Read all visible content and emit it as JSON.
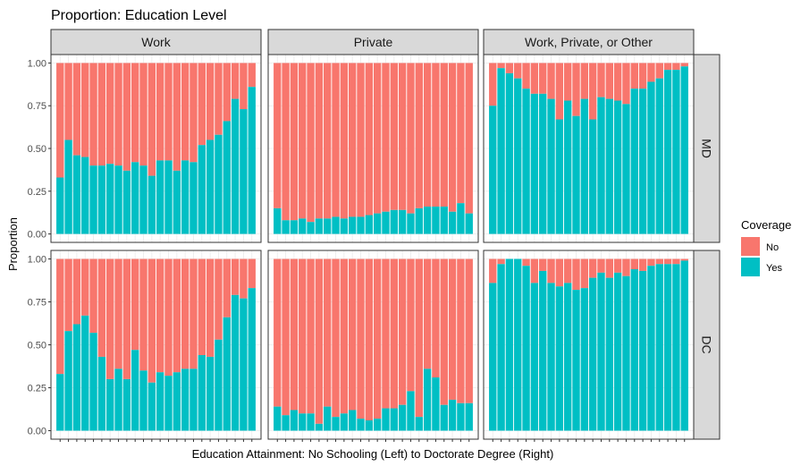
{
  "chart_data": {
    "type": "bar",
    "stacked": true,
    "title": "Proportion: Education Level",
    "xlabel": "Education Attainment: No Schooling (Left) to Doctorate Degree (Right)",
    "ylabel": "Proportion",
    "ylim": [
      0,
      1
    ],
    "yticks": [
      "0.00",
      "0.25",
      "0.50",
      "0.75",
      "1.00"
    ],
    "n_categories": 24,
    "facet_columns": [
      "Work",
      "Private",
      "Work, Private, or Other"
    ],
    "facet_rows": [
      "MD",
      "DC"
    ],
    "legend": {
      "title": "Coverage",
      "position": "right",
      "entries": [
        {
          "label": "No",
          "color": "#F8766D"
        },
        {
          "label": "Yes",
          "color": "#00BFC4"
        }
      ]
    },
    "grid": true,
    "panels": [
      {
        "column": "Work",
        "row": "MD",
        "yes": [
          0.33,
          0.55,
          0.46,
          0.45,
          0.4,
          0.4,
          0.41,
          0.4,
          0.37,
          0.42,
          0.4,
          0.34,
          0.43,
          0.43,
          0.37,
          0.43,
          0.42,
          0.52,
          0.55,
          0.58,
          0.66,
          0.79,
          0.73,
          0.86
        ]
      },
      {
        "column": "Private",
        "row": "MD",
        "yes": [
          0.15,
          0.08,
          0.08,
          0.09,
          0.07,
          0.09,
          0.09,
          0.1,
          0.09,
          0.1,
          0.1,
          0.11,
          0.12,
          0.13,
          0.14,
          0.14,
          0.12,
          0.15,
          0.16,
          0.16,
          0.16,
          0.13,
          0.18,
          0.12
        ]
      },
      {
        "column": "Work, Private, or Other",
        "row": "MD",
        "yes": [
          0.75,
          0.97,
          0.94,
          0.91,
          0.85,
          0.82,
          0.82,
          0.79,
          0.67,
          0.78,
          0.69,
          0.79,
          0.67,
          0.8,
          0.79,
          0.78,
          0.76,
          0.85,
          0.85,
          0.89,
          0.91,
          0.96,
          0.96,
          0.98
        ]
      },
      {
        "column": "Work",
        "row": "DC",
        "yes": [
          0.33,
          0.58,
          0.62,
          0.67,
          0.57,
          0.43,
          0.3,
          0.36,
          0.3,
          0.47,
          0.35,
          0.28,
          0.34,
          0.32,
          0.34,
          0.36,
          0.36,
          0.44,
          0.43,
          0.53,
          0.66,
          0.79,
          0.77,
          0.83
        ]
      },
      {
        "column": "Private",
        "row": "DC",
        "yes": [
          0.14,
          0.09,
          0.12,
          0.1,
          0.1,
          0.04,
          0.14,
          0.08,
          0.1,
          0.12,
          0.07,
          0.06,
          0.07,
          0.13,
          0.13,
          0.15,
          0.23,
          0.08,
          0.36,
          0.31,
          0.15,
          0.18,
          0.16,
          0.16
        ]
      },
      {
        "column": "Work, Private, or Other",
        "row": "DC",
        "yes": [
          0.86,
          0.97,
          1.0,
          1.0,
          0.96,
          0.86,
          0.93,
          0.86,
          0.84,
          0.86,
          0.82,
          0.83,
          0.89,
          0.92,
          0.89,
          0.92,
          0.9,
          0.94,
          0.93,
          0.96,
          0.97,
          0.97,
          0.97,
          0.99
        ]
      }
    ]
  }
}
